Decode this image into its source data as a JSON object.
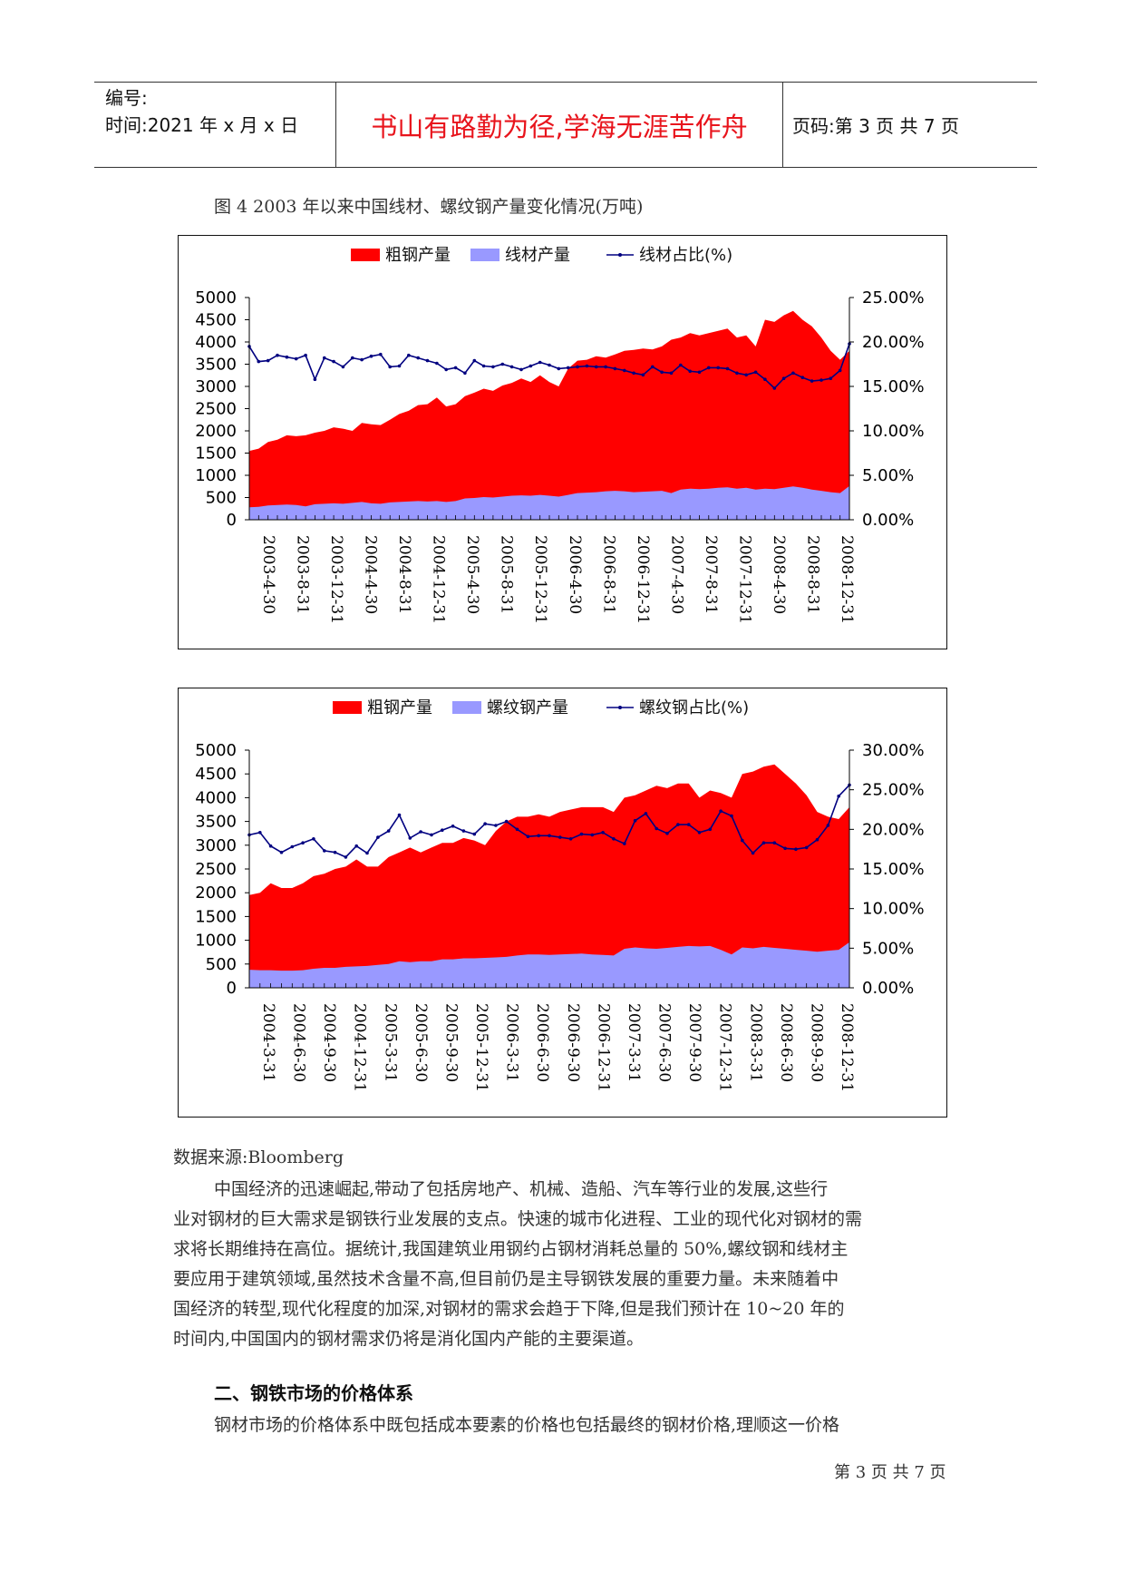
{
  "header": {
    "number_label": "编号:",
    "time_label": "时间:2021 年 x 月 x 日",
    "motto": "书山有路勤为径,学海无涯苦作舟",
    "page_label": "页码:第 3 页 共 7 页"
  },
  "figure_caption": "图 4 2003 年以来中国线材、螺纹钢产量变化情况(万吨)",
  "chart_data": [
    {
      "type": "area",
      "legend": [
        "粗钢产量",
        "线材产量",
        "线材占比(%)"
      ],
      "colors": {
        "crude": "#ff0000",
        "product": "#9999ff",
        "ratio": "#000080"
      },
      "y_left_ticks": [
        "5000",
        "4500",
        "4000",
        "3500",
        "3000",
        "2500",
        "2000",
        "1500",
        "1000",
        "500",
        "0"
      ],
      "y_right_ticks": [
        "25.00%",
        "20.00%",
        "15.00%",
        "10.00%",
        "5.00%",
        "0.00%"
      ],
      "ylim_left": [
        0,
        5000
      ],
      "ylim_right": [
        0,
        25
      ],
      "x_labels": [
        "2003-4-30",
        "2003-8-31",
        "2003-12-31",
        "2004-4-30",
        "2004-8-31",
        "2004-12-31",
        "2005-4-30",
        "2005-8-31",
        "2005-12-31",
        "2006-4-30",
        "2006-8-31",
        "2006-12-31",
        "2007-4-30",
        "2007-8-31",
        "2007-12-31",
        "2008-4-30",
        "2008-8-31",
        "2008-12-31"
      ],
      "crude": [
        1550,
        1600,
        1750,
        1800,
        1900,
        1880,
        1900,
        1960,
        2000,
        2080,
        2050,
        2000,
        2180,
        2150,
        2130,
        2250,
        2380,
        2450,
        2580,
        2600,
        2750,
        2550,
        2600,
        2780,
        2860,
        2950,
        2900,
        3020,
        3080,
        3180,
        3100,
        3250,
        3100,
        3000,
        3400,
        3580,
        3600,
        3680,
        3650,
        3720,
        3800,
        3820,
        3850,
        3830,
        3900,
        4050,
        4100,
        4200,
        4150,
        4200,
        4250,
        4300,
        4100,
        4150,
        3900,
        4500,
        4450,
        4600,
        4700,
        4500,
        4350,
        4100,
        3800,
        3600,
        3800
      ],
      "product": [
        280,
        290,
        320,
        330,
        340,
        330,
        300,
        350,
        360,
        370,
        360,
        380,
        400,
        370,
        360,
        390,
        400,
        410,
        420,
        410,
        420,
        400,
        420,
        480,
        490,
        510,
        500,
        520,
        540,
        550,
        540,
        560,
        540,
        520,
        560,
        600,
        610,
        620,
        640,
        650,
        640,
        620,
        630,
        640,
        650,
        600,
        680,
        700,
        690,
        700,
        720,
        730,
        700,
        720,
        680,
        700,
        690,
        720,
        750,
        720,
        680,
        650,
        620,
        600,
        760
      ],
      "ratio": [
        19.5,
        17.8,
        17.9,
        18.5,
        18.3,
        18.1,
        18.5,
        15.8,
        18.2,
        17.8,
        17.2,
        18.2,
        18.0,
        18.4,
        18.6,
        17.2,
        17.3,
        18.5,
        18.2,
        17.9,
        17.6,
        16.9,
        17.1,
        16.5,
        17.9,
        17.3,
        17.2,
        17.5,
        17.2,
        16.9,
        17.3,
        17.7,
        17.4,
        17.0,
        17.1,
        17.2,
        17.3,
        17.2,
        17.2,
        17.0,
        16.8,
        16.5,
        16.3,
        17.2,
        16.6,
        16.5,
        17.4,
        16.7,
        16.6,
        17.1,
        17.1,
        17.0,
        16.5,
        16.3,
        16.6,
        15.8,
        14.8,
        15.9,
        16.5,
        16.0,
        15.6,
        15.7,
        15.9,
        16.8,
        19.8
      ]
    },
    {
      "type": "area",
      "legend": [
        "粗钢产量",
        "螺纹钢产量",
        "螺纹钢占比(%)"
      ],
      "colors": {
        "crude": "#ff0000",
        "product": "#9999ff",
        "ratio": "#000080"
      },
      "y_left_ticks": [
        "5000",
        "4500",
        "4000",
        "3500",
        "3000",
        "2500",
        "2000",
        "1500",
        "1000",
        "500",
        "0"
      ],
      "y_right_ticks": [
        "30.00%",
        "25.00%",
        "20.00%",
        "15.00%",
        "10.00%",
        "5.00%",
        "0.00%"
      ],
      "ylim_left": [
        0,
        5000
      ],
      "ylim_right": [
        0,
        30
      ],
      "x_labels": [
        "2004-3-31",
        "2004-6-30",
        "2004-9-30",
        "2004-12-31",
        "2005-3-31",
        "2005-6-30",
        "2005-9-30",
        "2005-12-31",
        "2006-3-31",
        "2006-6-30",
        "2006-9-30",
        "2006-12-31",
        "2007-3-31",
        "2007-6-30",
        "2007-9-30",
        "2007-12-31",
        "2008-3-31",
        "2008-6-30",
        "2008-9-30",
        "2008-12-31"
      ],
      "crude": [
        1950,
        2000,
        2200,
        2100,
        2100,
        2200,
        2350,
        2400,
        2500,
        2550,
        2700,
        2550,
        2550,
        2750,
        2850,
        2950,
        2850,
        2950,
        3050,
        3050,
        3150,
        3100,
        3000,
        3300,
        3500,
        3600,
        3600,
        3650,
        3600,
        3700,
        3750,
        3800,
        3800,
        3800,
        3700,
        4000,
        4050,
        4150,
        4250,
        4200,
        4300,
        4300,
        4000,
        4150,
        4100,
        4000,
        4500,
        4550,
        4650,
        4700,
        4500,
        4300,
        4050,
        3700,
        3600,
        3550,
        3800
      ],
      "product": [
        380,
        370,
        370,
        360,
        360,
        370,
        400,
        420,
        420,
        440,
        450,
        460,
        480,
        500,
        560,
        540,
        560,
        560,
        600,
        600,
        620,
        620,
        630,
        640,
        650,
        680,
        700,
        700,
        690,
        700,
        710,
        720,
        700,
        690,
        680,
        820,
        850,
        830,
        820,
        840,
        860,
        880,
        870,
        880,
        800,
        700,
        850,
        830,
        860,
        840,
        820,
        800,
        780,
        760,
        780,
        800,
        960
      ],
      "ratio": [
        19.3,
        19.6,
        17.9,
        17.1,
        17.8,
        18.3,
        18.8,
        17.3,
        17.1,
        16.5,
        17.9,
        17.0,
        19.0,
        19.8,
        21.8,
        18.9,
        19.7,
        19.3,
        19.9,
        20.4,
        19.8,
        19.4,
        20.7,
        20.5,
        21.0,
        20.0,
        19.1,
        19.2,
        19.2,
        19.0,
        18.8,
        19.4,
        19.3,
        19.6,
        18.8,
        18.2,
        21.1,
        22.0,
        20.1,
        19.5,
        20.6,
        20.6,
        19.6,
        20.0,
        22.3,
        21.7,
        18.6,
        17.0,
        18.3,
        18.3,
        17.6,
        17.5,
        17.7,
        18.7,
        20.5,
        24.2,
        25.6
      ]
    }
  ],
  "source": "数据来源:Bloomberg",
  "paragraph1": [
    "中国经济的迅速崛起,带动了包括房地产、机械、造船、汽车等行业的发展,这些行",
    "业对钢材的巨大需求是钢铁行业发展的支点。快速的城市化进程、工业的现代化对钢材的需",
    "求将长期维持在高位。据统计,我国建筑业用钢约占钢材消耗总量的 50%,螺纹钢和线材主",
    "要应用于建筑领域,虽然技术含量不高,但目前仍是主导钢铁发展的重要力量。未来随着中",
    "国经济的转型,现代化程度的加深,对钢材的需求会趋于下降,但是我们预计在 10~20 年的",
    "时间内,中国国内的钢材需求仍将是消化国内产能的主要渠道。"
  ],
  "section_heading": "二、钢铁市场的价格体系",
  "paragraph2": [
    "钢材市场的价格体系中既包括成本要素的价格也包括最终的钢材价格,理顺这一价格"
  ],
  "footer": "第 3 页 共 7 页"
}
